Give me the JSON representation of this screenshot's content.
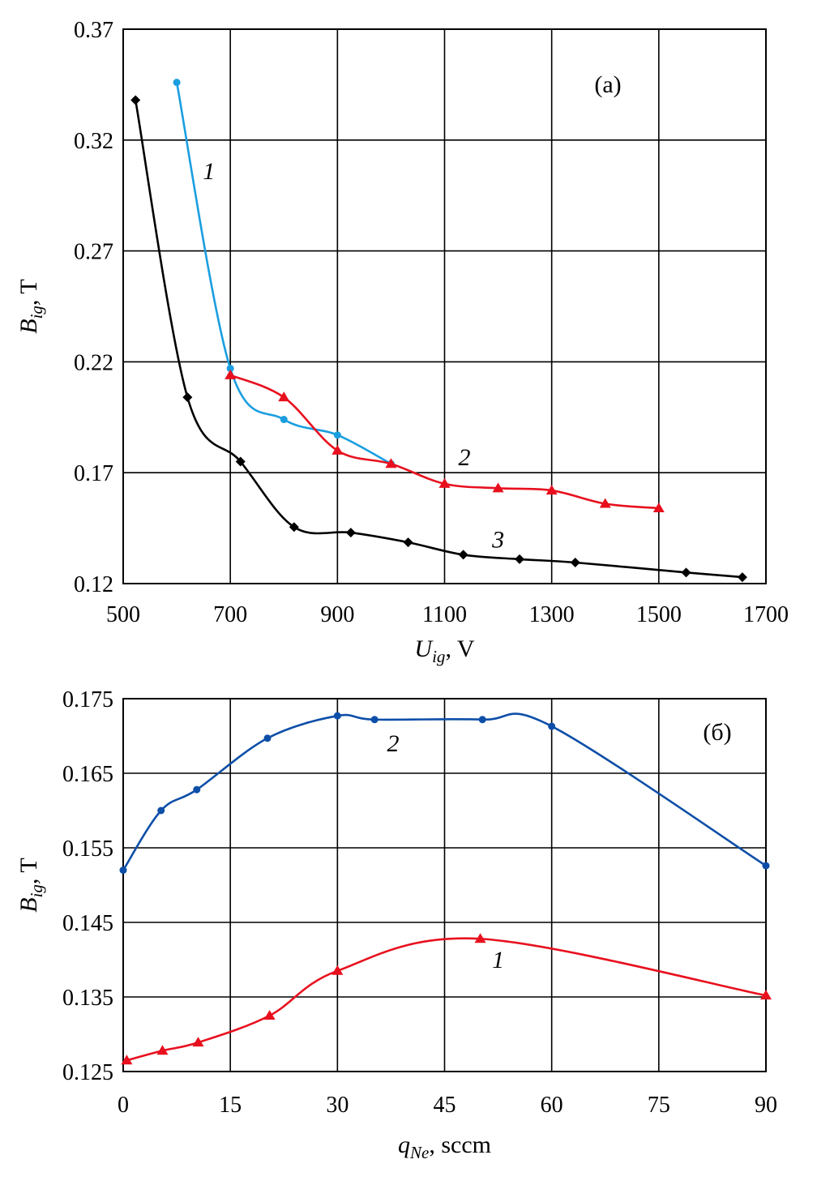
{
  "chart_data": [
    {
      "type": "line",
      "panel_label": "(a)",
      "xlabel": {
        "main": "U",
        "sub": "ig",
        "rest": ", V"
      },
      "ylabel": {
        "main": "B",
        "sub": "ig",
        "rest": ", T"
      },
      "xlim": [
        500,
        1700
      ],
      "ylim": [
        0.12,
        0.37
      ],
      "xticks": [
        "500",
        "700",
        "900",
        "1100",
        "1300",
        "1500",
        "1700"
      ],
      "yticks": [
        "0.12",
        "0.17",
        "0.22",
        "0.27",
        "0.32",
        "0.37"
      ],
      "grid": true,
      "series": [
        {
          "name": "1",
          "color": "#1a9ee0",
          "marker": "circle",
          "x": [
            600,
            700,
            800,
            900,
            1000
          ],
          "y": [
            0.346,
            0.217,
            0.194,
            0.187,
            0.174
          ]
        },
        {
          "name": "2",
          "color": "#e8101e",
          "marker": "triangle",
          "x": [
            700,
            800,
            900,
            1000,
            1100,
            1200,
            1300,
            1400,
            1500
          ],
          "y": [
            0.214,
            0.204,
            0.18,
            0.174,
            0.165,
            0.163,
            0.162,
            0.156,
            0.154
          ]
        },
        {
          "name": "3",
          "color": "#000000",
          "marker": "diamond",
          "x": [
            523,
            620,
            719,
            819,
            925,
            1032,
            1135,
            1240,
            1344,
            1551,
            1656
          ],
          "y": [
            0.338,
            0.204,
            0.175,
            0.1455,
            0.143,
            0.1386,
            0.133,
            0.131,
            0.1295,
            0.125,
            0.1229
          ]
        }
      ],
      "annotations": [
        {
          "text": "1",
          "x": 660,
          "y": 0.306
        },
        {
          "text": "2",
          "x": 1137,
          "y": 0.177
        },
        {
          "text": "3",
          "x": 1200,
          "y": 0.14
        }
      ]
    },
    {
      "type": "line",
      "panel_label": "(б)",
      "xlabel": {
        "main": "q",
        "sub": "Ne",
        "rest": ", sccm"
      },
      "ylabel": {
        "main": "B",
        "sub": "ig",
        "rest": ", T"
      },
      "xlim": [
        0,
        90
      ],
      "ylim": [
        0.125,
        0.175
      ],
      "xticks": [
        "0",
        "15",
        "30",
        "45",
        "60",
        "75",
        "90"
      ],
      "yticks": [
        "0.125",
        "0.135",
        "0.145",
        "0.155",
        "0.165",
        "0.175"
      ],
      "grid": true,
      "series": [
        {
          "name": "2",
          "color": "#0d4fa8",
          "marker": "circle",
          "x": [
            0,
            5.3,
            10.3,
            20.2,
            30,
            35.2,
            50.3,
            60,
            90
          ],
          "y": [
            0.152,
            0.16,
            0.1628,
            0.1697,
            0.1727,
            0.1722,
            0.1722,
            0.1713,
            0.1526
          ]
        },
        {
          "name": "1",
          "color": "#e8101e",
          "marker": "triangle",
          "x": [
            0.5,
            5.5,
            10.5,
            20.5,
            30,
            50,
            90
          ],
          "y": [
            0.1265,
            0.1278,
            0.1289,
            0.1325,
            0.1385,
            0.1428,
            0.1352
          ]
        }
      ],
      "annotations": [
        {
          "text": "2",
          "x": 37.8,
          "y": 0.169
        },
        {
          "text": "1",
          "x": 52.5,
          "y": 0.14
        }
      ]
    }
  ]
}
